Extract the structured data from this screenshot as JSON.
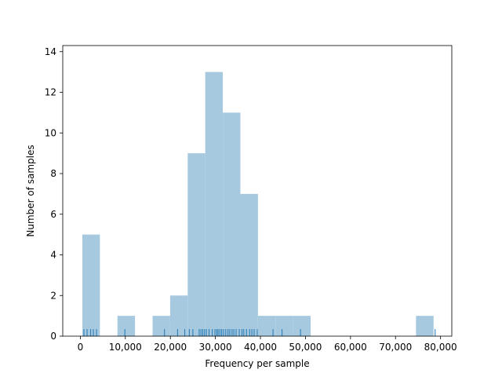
{
  "chart_data": {
    "type": "bar",
    "title": "",
    "xlabel": "Frequency per sample",
    "ylabel": "Number of samples",
    "xlim": [
      -3900,
      82500
    ],
    "ylim": [
      0,
      14.3
    ],
    "xticks": [
      0,
      10000,
      20000,
      30000,
      40000,
      50000,
      60000,
      70000,
      80000
    ],
    "xtick_labels": [
      "0",
      "10,000",
      "20,000",
      "30,000",
      "40,000",
      "50,000",
      "60,000",
      "70,000",
      "80,000"
    ],
    "yticks": [
      0,
      2,
      4,
      6,
      8,
      10,
      12,
      14
    ],
    "ytick_labels": [
      "0",
      "2",
      "4",
      "6",
      "8",
      "10",
      "12",
      "14"
    ],
    "bar_color": "#a6c9e0",
    "rug_color": "#1f77b4",
    "bins": [
      {
        "x0": 450,
        "x1": 4350,
        "count": 5
      },
      {
        "x0": 8250,
        "x1": 12150,
        "count": 1
      },
      {
        "x0": 16050,
        "x1": 19950,
        "count": 1
      },
      {
        "x0": 19950,
        "x1": 23850,
        "count": 2
      },
      {
        "x0": 23850,
        "x1": 27750,
        "count": 9
      },
      {
        "x0": 27750,
        "x1": 31650,
        "count": 13
      },
      {
        "x0": 31650,
        "x1": 35550,
        "count": 11
      },
      {
        "x0": 35550,
        "x1": 39450,
        "count": 7
      },
      {
        "x0": 39450,
        "x1": 43350,
        "count": 1
      },
      {
        "x0": 43350,
        "x1": 47250,
        "count": 1
      },
      {
        "x0": 47250,
        "x1": 51150,
        "count": 1
      },
      {
        "x0": 74550,
        "x1": 78450,
        "count": 1
      }
    ],
    "rug": [
      800,
      1500,
      2300,
      2900,
      3600,
      9900,
      18700,
      21600,
      23200,
      24200,
      25000,
      26400,
      26800,
      27200,
      27600,
      28000,
      28600,
      29300,
      29900,
      30300,
      30600,
      31000,
      31400,
      31800,
      32300,
      32800,
      33200,
      33700,
      34100,
      34600,
      35300,
      35900,
      36300,
      36900,
      37600,
      38100,
      38600,
      39300,
      42800,
      44800,
      48900,
      78800
    ]
  }
}
